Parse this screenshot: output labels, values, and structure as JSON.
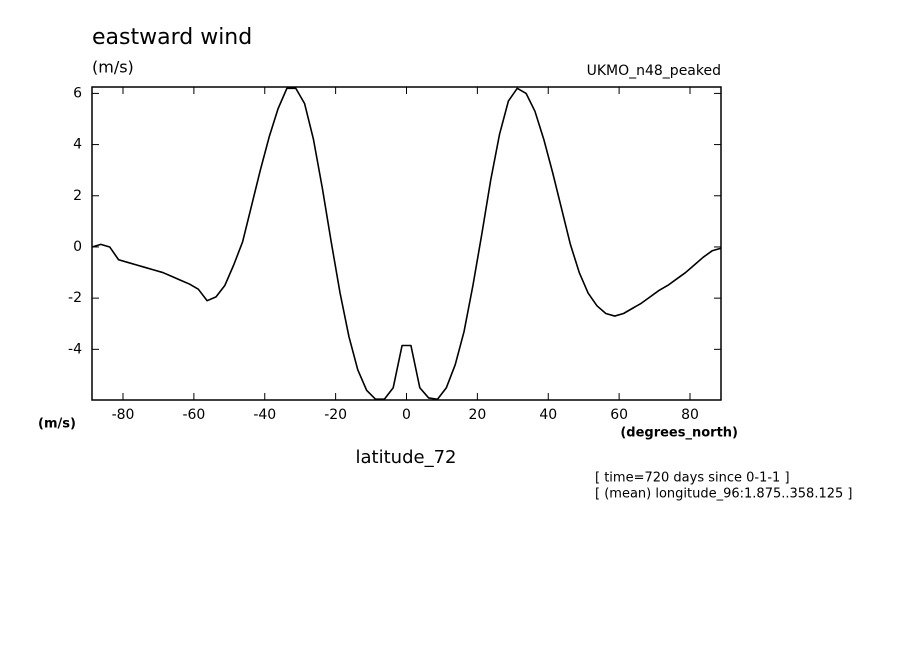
{
  "chart_data": {
    "type": "line",
    "title": "eastward wind",
    "y_units": "(m/s)",
    "dataset": "UKMO_n48_peaked",
    "x_units_left": "(m/s)",
    "x_units": "(degrees_north)",
    "x_label": "latitude_72",
    "notes": [
      "[ time=720 days since 0-1-1 ]",
      "[ (mean) longitude_96:1.875..358.125 ]"
    ],
    "color": "#000000",
    "x": [
      -88.75,
      -86.25,
      -83.75,
      -81.25,
      -78.75,
      -76.25,
      -73.75,
      -71.25,
      -68.75,
      -66.25,
      -63.75,
      -61.25,
      -58.75,
      -56.25,
      -53.75,
      -51.25,
      -48.75,
      -46.25,
      -43.75,
      -41.25,
      -38.75,
      -36.25,
      -33.75,
      -31.25,
      -28.75,
      -26.25,
      -23.75,
      -21.25,
      -18.75,
      -16.25,
      -13.75,
      -11.25,
      -8.75,
      -6.25,
      -3.75,
      -1.25,
      1.25,
      3.75,
      6.25,
      8.75,
      11.25,
      13.75,
      16.25,
      18.75,
      21.25,
      23.75,
      26.25,
      28.75,
      31.25,
      33.75,
      36.25,
      38.75,
      41.25,
      43.75,
      46.25,
      48.75,
      51.25,
      53.75,
      56.25,
      58.75,
      61.25,
      63.75,
      66.25,
      68.75,
      71.25,
      73.75,
      76.25,
      78.75,
      81.25,
      83.75,
      86.25,
      88.75
    ],
    "values": [
      0.0,
      0.1,
      0.0,
      -0.5,
      -0.6,
      -0.7,
      -0.8,
      -0.9,
      -1.0,
      -1.15,
      -1.3,
      -1.45,
      -1.65,
      -2.1,
      -1.95,
      -1.5,
      -0.7,
      0.2,
      1.6,
      3.0,
      4.3,
      5.4,
      6.2,
      6.2,
      5.6,
      4.2,
      2.3,
      0.2,
      -1.8,
      -3.5,
      -4.8,
      -5.6,
      -5.95,
      -5.95,
      -5.5,
      -3.85,
      -3.85,
      -5.5,
      -5.9,
      -5.95,
      -5.5,
      -4.6,
      -3.3,
      -1.5,
      0.5,
      2.6,
      4.4,
      5.7,
      6.2,
      6.0,
      5.3,
      4.2,
      2.9,
      1.5,
      0.1,
      -1.0,
      -1.8,
      -2.3,
      -2.6,
      -2.7,
      -2.6,
      -2.4,
      -2.2,
      -1.95,
      -1.7,
      -1.5,
      -1.25,
      -1.0,
      -0.7,
      -0.4,
      -0.15,
      -0.05
    ],
    "xlim": [
      -88.75,
      88.75
    ],
    "ylim": [
      -5.98,
      6.25
    ],
    "xticks": [
      -80,
      -60,
      -40,
      -20,
      0,
      20,
      40,
      60,
      80
    ],
    "yticks": [
      -4,
      -2,
      0,
      2,
      4,
      6
    ]
  }
}
